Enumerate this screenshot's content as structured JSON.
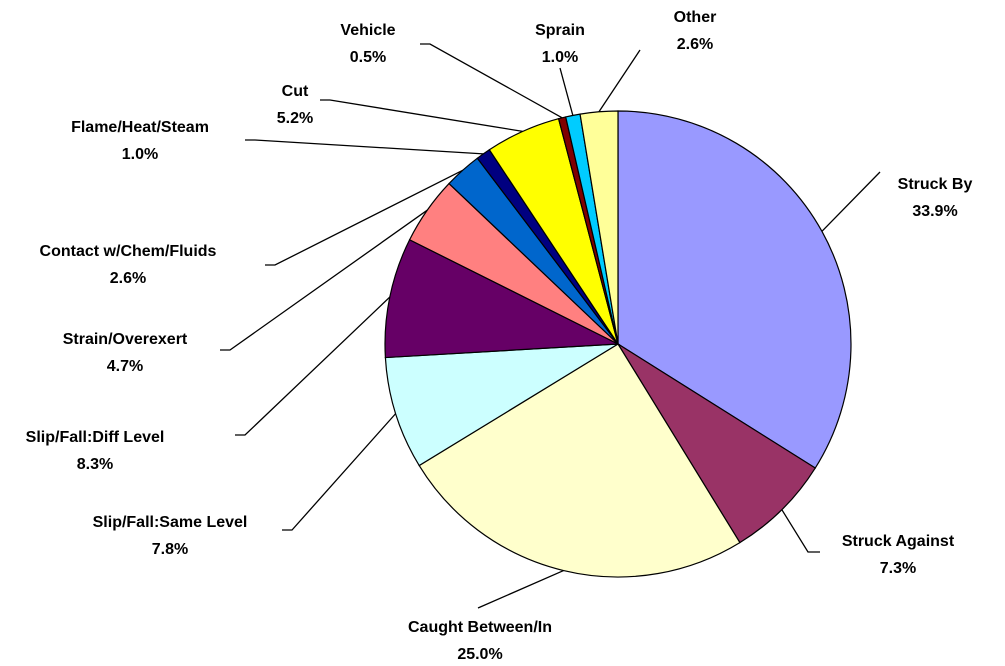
{
  "chart_data": {
    "type": "pie",
    "categories": [
      "Struck By",
      "Struck Against",
      "Caught Between/In",
      "Slip/Fall:Same Level",
      "Slip/Fall:Diff Level",
      "Strain/Overexert",
      "Contact w/Chem/Fluids",
      "Flame/Heat/Steam",
      "Cut",
      "Vehicle",
      "Sprain",
      "Other"
    ],
    "values": [
      33.9,
      7.3,
      25.0,
      7.8,
      8.3,
      4.7,
      2.6,
      1.0,
      5.2,
      0.5,
      1.0,
      2.6
    ],
    "value_labels": [
      "33.9%",
      "7.3%",
      "25.0%",
      "7.8%",
      "8.3%",
      "4.7%",
      "2.6%",
      "1.0%",
      "5.2%",
      "0.5%",
      "1.0%",
      "2.6%"
    ],
    "colors": [
      "#9999ff",
      "#993366",
      "#ffffcc",
      "#ccffff",
      "#660066",
      "#ff8080",
      "#0066cc",
      "#000080",
      "#ffff00",
      "#800000",
      "#00ccff",
      "#ffff99"
    ]
  }
}
